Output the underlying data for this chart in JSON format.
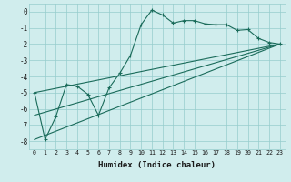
{
  "xlabel": "Humidex (Indice chaleur)",
  "background_color": "#d0eded",
  "grid_color": "#96cccc",
  "line_color": "#1a6b5a",
  "xlim": [
    -0.5,
    23.5
  ],
  "ylim": [
    -8.5,
    0.5
  ],
  "xtick_labels": [
    "0",
    "1",
    "2",
    "3",
    "4",
    "5",
    "6",
    "7",
    "8",
    "9",
    "10",
    "11",
    "12",
    "13",
    "14",
    "15",
    "16",
    "17",
    "18",
    "19",
    "20",
    "21",
    "22",
    "23"
  ],
  "ytick_labels": [
    "0",
    "-1",
    "-2",
    "-3",
    "-4",
    "-5",
    "-6",
    "-7",
    "-8"
  ],
  "ytick_vals": [
    0,
    -1,
    -2,
    -3,
    -4,
    -5,
    -6,
    -7,
    -8
  ],
  "main_line": {
    "x": [
      0,
      1,
      2,
      3,
      4,
      5,
      6,
      7,
      8,
      9,
      10,
      11,
      12,
      13,
      14,
      15,
      16,
      17,
      18,
      19,
      20,
      21,
      22,
      23
    ],
    "y": [
      -5.0,
      -7.9,
      -6.5,
      -4.5,
      -4.6,
      -5.1,
      -6.4,
      -4.7,
      -3.8,
      -2.7,
      -0.8,
      0.1,
      -0.2,
      -0.7,
      -0.55,
      -0.55,
      -0.75,
      -0.8,
      -0.8,
      -1.15,
      -1.1,
      -1.65,
      -1.9,
      -2.0
    ]
  },
  "line_ref1": {
    "x": [
      0,
      23
    ],
    "y": [
      -5.0,
      -2.0
    ]
  },
  "line_ref2": {
    "x": [
      0,
      23
    ],
    "y": [
      -7.9,
      -2.0
    ]
  },
  "line_ref3": {
    "x": [
      0,
      23
    ],
    "y": [
      -6.4,
      -2.0
    ]
  }
}
